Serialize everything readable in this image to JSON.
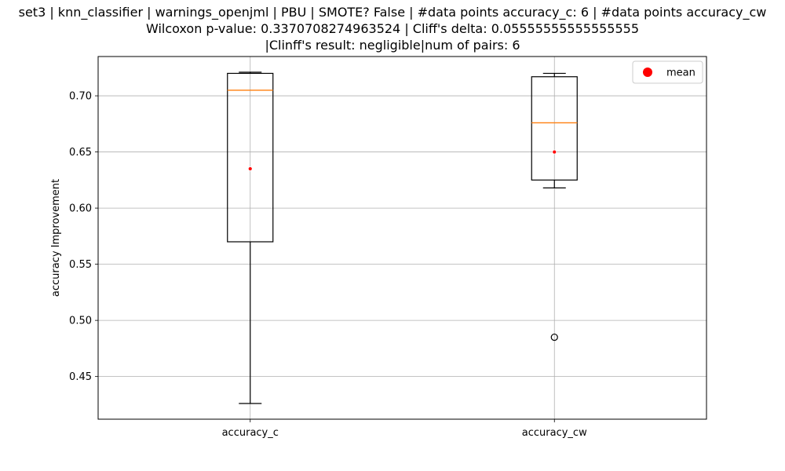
{
  "chart_data": {
    "type": "box",
    "title_lines": [
      "set3 | knn_classifier | warnings_openjml | PBU | SMOTE? False | #data points accuracy_c: 6 | #data points accuracy_cw",
      "Wilcoxon p-value: 0.3370708274963524 | Cliff's delta: 0.05555555555555555",
      "|Clinff's result: negligible|num of pairs: 6"
    ],
    "xlabel": "",
    "ylabel": "accuracy Improvement",
    "ylim": [
      0.412,
      0.735
    ],
    "yticks": [
      0.45,
      0.5,
      0.55,
      0.6,
      0.65,
      0.7
    ],
    "ytick_labels": [
      "0.45",
      "0.50",
      "0.55",
      "0.60",
      "0.65",
      "0.70"
    ],
    "grid": true,
    "legend": {
      "placement": "top-right",
      "entries": [
        {
          "label": "mean",
          "color": "#ff0000"
        }
      ]
    },
    "colors": {
      "box": "#000000",
      "median": "#ff7f0e",
      "mean": "#ff0000",
      "grid": "#b0b0b0"
    },
    "categories": [
      "accuracy_c",
      "accuracy_cw"
    ],
    "boxes": [
      {
        "name": "accuracy_c",
        "whisker_low": 0.426,
        "q1": 0.57,
        "median": 0.705,
        "q3": 0.72,
        "whisker_high": 0.721,
        "mean": 0.635,
        "outliers": []
      },
      {
        "name": "accuracy_cw",
        "whisker_low": 0.618,
        "q1": 0.625,
        "median": 0.676,
        "q3": 0.717,
        "whisker_high": 0.72,
        "mean": 0.65,
        "outliers": [
          0.485
        ]
      }
    ]
  }
}
